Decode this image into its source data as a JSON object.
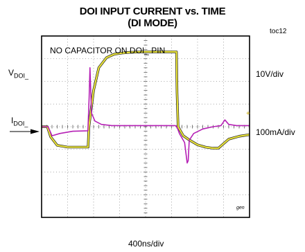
{
  "chart_data": {
    "type": "line",
    "title_line1": "DOI INPUT CURRENT vs. TIME",
    "title_line2": "(DI MODE)",
    "figure_id": "toc12",
    "annotation": "NO CAPACITOR ON DOI_ PIN",
    "watermark": "gen",
    "xlabel": "400ns/div",
    "grid": true,
    "divisions": {
      "x": 8,
      "y": 8
    },
    "x_unit": "div",
    "xlim": [
      0,
      8
    ],
    "ylim": [
      -4,
      4
    ],
    "colors": {
      "voltage": "#e8e23a",
      "voltage_outline": "#222222",
      "current": "#b51fb5",
      "grid": "#888888",
      "frame": "#000000"
    },
    "series": [
      {
        "name": "VDOI_",
        "label_main": "V",
        "label_sub": "DOI_",
        "scale": "10V/div",
        "x": [
          0,
          0.22,
          0.35,
          0.6,
          1.0,
          1.4,
          1.79,
          1.82,
          2.0,
          2.2,
          2.5,
          2.8,
          3.1,
          3.4,
          3.8,
          4.2,
          4.6,
          5.0,
          5.19,
          5.21,
          5.25,
          5.45,
          5.7,
          6.0,
          6.3,
          6.6,
          6.8,
          7.2,
          7.6,
          8.0
        ],
        "y": [
          0.0,
          0.0,
          -0.45,
          -0.82,
          -0.9,
          -0.9,
          -0.9,
          0.0,
          1.6,
          2.6,
          3.05,
          3.2,
          3.25,
          3.28,
          3.3,
          3.3,
          3.3,
          3.3,
          3.3,
          1.5,
          0.0,
          -0.4,
          -0.6,
          -0.8,
          -0.9,
          -0.95,
          -0.95,
          -0.55,
          -0.42,
          -0.35
        ]
      },
      {
        "name": "IDOI_",
        "label_main": "I",
        "label_sub": "DOI_",
        "scale": "100mA/div",
        "x": [
          0,
          0.25,
          0.4,
          0.7,
          1.2,
          1.78,
          1.83,
          1.86,
          1.92,
          2.05,
          2.3,
          2.7,
          3.2,
          4.0,
          4.8,
          5.15,
          5.22,
          5.3,
          5.5,
          5.6,
          5.64,
          5.68,
          5.85,
          6.2,
          6.6,
          6.9,
          7.05,
          7.2,
          7.5,
          8.0
        ],
        "y": [
          0.0,
          0.0,
          -0.4,
          -0.3,
          -0.2,
          -0.18,
          1.3,
          2.6,
          0.6,
          0.25,
          0.1,
          0.05,
          0.05,
          0.05,
          0.05,
          0.05,
          -0.05,
          -0.3,
          -0.7,
          -1.6,
          -1.5,
          -0.6,
          -0.3,
          -0.1,
          0.0,
          0.05,
          0.3,
          0.1,
          0.05,
          0.05
        ]
      }
    ]
  }
}
